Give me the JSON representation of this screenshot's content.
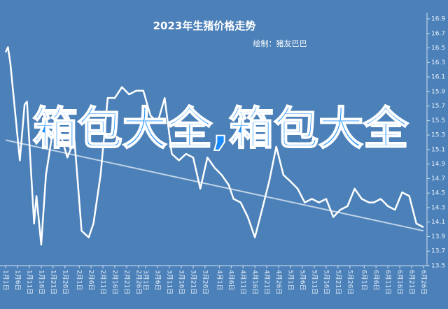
{
  "chart_data": {
    "type": "line",
    "title": "2023年生猪价格走势",
    "subtitle": "绘制：猪友巴巴",
    "watermark": "箱包大全,箱包大全",
    "background": "#4b80b8",
    "x": [
      1,
      2,
      3,
      7,
      9,
      10,
      13,
      14,
      16,
      18,
      21,
      24,
      27,
      30,
      33,
      36,
      38,
      41,
      44,
      47,
      50,
      53,
      56,
      59,
      62,
      65,
      68,
      71,
      74,
      77,
      80,
      83,
      86,
      89,
      92,
      95,
      97,
      100,
      103,
      106,
      109,
      112,
      115,
      118,
      121,
      124,
      127,
      130,
      133,
      136,
      139,
      142,
      145,
      148,
      151,
      154,
      156,
      159,
      162,
      165,
      168,
      171,
      174,
      177
    ],
    "series": [
      {
        "color": "#ffffff",
        "values": [
          16.44,
          16.51,
          16.29,
          14.95,
          15.72,
          15.76,
          14.08,
          14.46,
          13.79,
          14.75,
          15.38,
          15.33,
          14.99,
          15.23,
          13.98,
          13.89,
          14.08,
          14.75,
          15.81,
          15.81,
          15.96,
          15.86,
          15.91,
          15.91,
          15.57,
          15.47,
          15.81,
          15.04,
          14.95,
          15.04,
          14.99,
          14.56,
          14.99,
          14.85,
          14.75,
          14.61,
          14.42,
          14.37,
          14.17,
          13.89,
          14.27,
          14.66,
          15.14,
          14.75,
          14.66,
          14.56,
          14.37,
          14.42,
          14.37,
          14.42,
          14.17,
          14.27,
          14.32,
          14.56,
          14.42,
          14.37,
          14.37,
          14.42,
          14.32,
          14.27,
          14.51,
          14.46,
          14.08,
          14.03
        ]
      }
    ],
    "trend": {
      "x": [
        1,
        177
      ],
      "values": [
        15.23,
        13.98
      ],
      "color": "#dde8f5"
    },
    "xlim": [
      1,
      177
    ],
    "xticks": [
      {
        "value": 1,
        "label": "1月1日"
      },
      {
        "value": 6,
        "label": "1月6日"
      },
      {
        "value": 11,
        "label": "1月11日"
      },
      {
        "value": 16,
        "label": "1月16日"
      },
      {
        "value": 21,
        "label": "1月21日"
      },
      {
        "value": 26,
        "label": "1月26日"
      },
      {
        "value": 32,
        "label": "2月1日"
      },
      {
        "value": 37,
        "label": "2月6日"
      },
      {
        "value": 42,
        "label": "2月11日"
      },
      {
        "value": 47,
        "label": "2月16日"
      },
      {
        "value": 52,
        "label": "2月21日"
      },
      {
        "value": 57,
        "label": "2月26日"
      },
      {
        "value": 60,
        "label": "3月1日"
      },
      {
        "value": 65,
        "label": "3月6日"
      },
      {
        "value": 70,
        "label": "3月11日"
      },
      {
        "value": 75,
        "label": "3月16日"
      },
      {
        "value": 80,
        "label": "3月21日"
      },
      {
        "value": 85,
        "label": "3月26日"
      },
      {
        "value": 91,
        "label": "4月1日"
      },
      {
        "value": 96,
        "label": "4月6日"
      },
      {
        "value": 101,
        "label": "4月11日"
      },
      {
        "value": 106,
        "label": "4月16日"
      },
      {
        "value": 111,
        "label": "4月21日"
      },
      {
        "value": 116,
        "label": "4月26日"
      },
      {
        "value": 121,
        "label": "5月1日"
      },
      {
        "value": 126,
        "label": "5月6日"
      },
      {
        "value": 131,
        "label": "5月11日"
      },
      {
        "value": 136,
        "label": "5月16日"
      },
      {
        "value": 141,
        "label": "5月21日"
      },
      {
        "value": 146,
        "label": "5月26日"
      },
      {
        "value": 152,
        "label": "6月1日"
      },
      {
        "value": 157,
        "label": "6月6日"
      },
      {
        "value": 162,
        "label": "6月11日"
      },
      {
        "value": 167,
        "label": "6月16日"
      },
      {
        "value": 172,
        "label": "6月21日"
      },
      {
        "value": 177,
        "label": "6月26日"
      }
    ],
    "ylim": [
      13.5,
      16.9
    ],
    "yticks": [
      13.5,
      13.7,
      13.9,
      14.1,
      14.3,
      14.5,
      14.7,
      14.9,
      15.1,
      15.3,
      15.5,
      15.7,
      15.9,
      16.1,
      16.3,
      16.5,
      16.7,
      16.9
    ],
    "yaxis_side": "right"
  }
}
